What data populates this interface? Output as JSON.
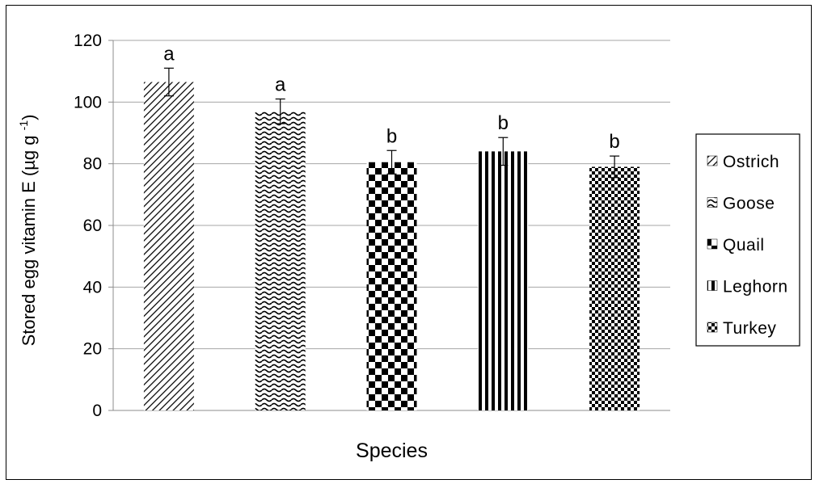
{
  "chart_data": {
    "type": "bar",
    "categories": [
      "Ostrich",
      "Goose",
      "Quail",
      "Leghorn",
      "Turkey"
    ],
    "values": [
      106.5,
      97,
      80.5,
      84,
      79
    ],
    "error": [
      4.5,
      4,
      3.8,
      4.5,
      3.5
    ],
    "significance_labels": [
      "a",
      "a",
      "b",
      "b",
      "b"
    ],
    "ylabel": "Stored egg vitamin E (µg g -1)",
    "ylabel_main": "Stored egg vitamin E (µg g",
    "ylabel_sup": "-1",
    "ylabel_close": ")",
    "xlabel": "Species",
    "ylim": [
      0,
      120
    ],
    "yticks": [
      "0",
      "20",
      "40",
      "60",
      "80",
      "100",
      "120"
    ],
    "grid": true,
    "legend": {
      "position": "right",
      "entries": [
        "Ostrich",
        "Goose",
        "Quail",
        "Leghorn",
        "Turkey"
      ]
    },
    "patterns": [
      "diagonal-stripes",
      "wavy-lines",
      "large-checker",
      "vertical-stripes",
      "small-checker"
    ],
    "colors": {
      "fill": "#000000",
      "background": "#ffffff",
      "grid": "#a6a6a6"
    }
  }
}
